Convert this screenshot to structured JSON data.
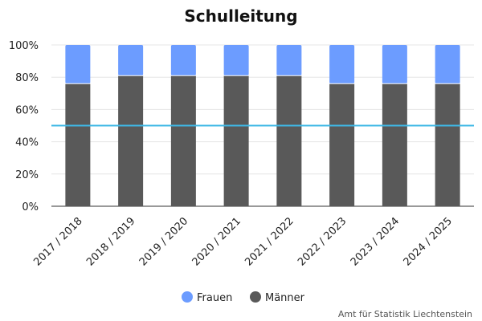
{
  "chart_data": {
    "type": "bar",
    "stacked": true,
    "title": "Schulleitung",
    "categories": [
      "2017 / 2018",
      "2018 / 2019",
      "2019 / 2020",
      "2020 / 2021",
      "2021 / 2022",
      "2022 / 2023",
      "2023 / 2024",
      "2024 / 2025"
    ],
    "series": [
      {
        "name": "Frauen",
        "color": "#6c9cff",
        "values": [
          24,
          19,
          19,
          19,
          19,
          24,
          24,
          24
        ]
      },
      {
        "name": "Männer",
        "color": "#595959",
        "values": [
          76,
          81,
          81,
          81,
          81,
          76,
          76,
          76
        ]
      }
    ],
    "ylim": [
      0,
      100
    ],
    "yticks": [
      "0%",
      "20%",
      "40%",
      "60%",
      "80%",
      "100%"
    ],
    "reference_line": {
      "value": 50,
      "color": "#3fb8e6"
    },
    "grid": true,
    "legend_position": "bottom"
  },
  "footer": {
    "source": "Amt für Statistik Liechtenstein"
  }
}
